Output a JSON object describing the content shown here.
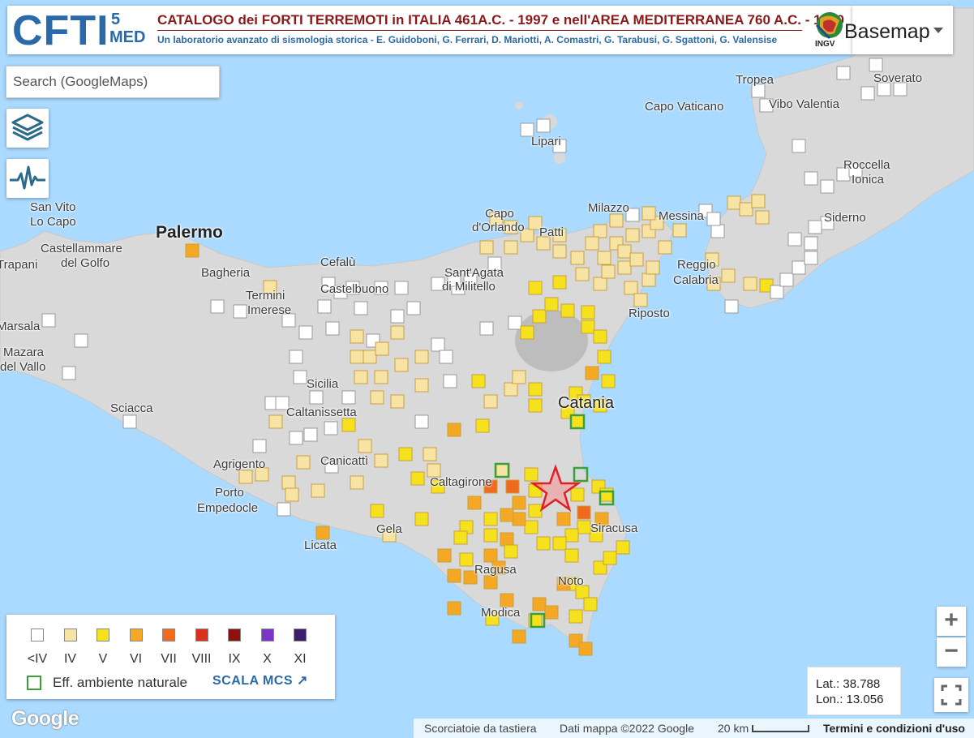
{
  "header": {
    "logo_main": "CFTI",
    "logo_num": "5",
    "logo_suffix": "MED",
    "title": "CATALOGO dei FORTI TERREMOTI in ITALIA 461A.C. - 1997 e nell'AREA MEDITERRANEA 760 A.C. - 1500",
    "subtitle": "Un laboratorio avanzato di sismologia storica - E. Guidoboni, G. Ferrari, D. Mariotti, A. Comastri, G. Tarabusi, G. Sgattoni, G. Valensise",
    "ingv_label": "INGV"
  },
  "basemap_button": {
    "label": "Basemap"
  },
  "search": {
    "placeholder": "Search (GoogleMaps)"
  },
  "side_buttons": [
    {
      "icon": "layers-icon"
    },
    {
      "icon": "seismogram-icon"
    }
  ],
  "map": {
    "colors": {
      "sea": "#aadaff",
      "land": "#d9d9d9",
      "land_light": "#e9e9e9",
      "env_border": "#3aa13a",
      "epicenter": "#e02020"
    },
    "places": [
      {
        "name": "Tropea",
        "x": 907,
        "y": 90
      },
      {
        "name": "Soverato",
        "x": 1077,
        "y": 88
      },
      {
        "name": "Vibo Valentia",
        "x": 948,
        "y": 120
      },
      {
        "name": "Capo Vaticano",
        "x": 795,
        "y": 123
      },
      {
        "name": "Lipari",
        "x": 655,
        "y": 166
      },
      {
        "name": "Roccella",
        "x": 1040,
        "y": 195
      },
      {
        "name": "Ionica",
        "x": 1050,
        "y": 213
      },
      {
        "name": "San Vito",
        "x": 37,
        "y": 247
      },
      {
        "name": "Lo Capo",
        "x": 37,
        "y": 265
      },
      {
        "name": "Capo",
        "x": 598,
        "y": 255
      },
      {
        "name": "d'Orlando",
        "x": 582,
        "y": 272
      },
      {
        "name": "Patti",
        "x": 665,
        "y": 278
      },
      {
        "name": "Milazzo",
        "x": 725,
        "y": 248
      },
      {
        "name": "Messina",
        "x": 812,
        "y": 258
      },
      {
        "name": "Siderno",
        "x": 1016,
        "y": 260
      },
      {
        "name": "Palermo",
        "x": 192,
        "y": 278,
        "style": "big"
      },
      {
        "name": "Castellammare",
        "x": 50,
        "y": 298
      },
      {
        "name": "del Golfo",
        "x": 75,
        "y": 316
      },
      {
        "name": "Trapani",
        "x": -4,
        "y": 318
      },
      {
        "name": "Bagheria",
        "x": 248,
        "y": 328
      },
      {
        "name": "Cefalù",
        "x": 395,
        "y": 315
      },
      {
        "name": "Reggio",
        "x": 835,
        "y": 318
      },
      {
        "name": "Calabria",
        "x": 830,
        "y": 337
      },
      {
        "name": "Termini",
        "x": 303,
        "y": 356
      },
      {
        "name": "Imerese",
        "x": 305,
        "y": 374
      },
      {
        "name": "Castelbuono",
        "x": 395,
        "y": 348
      },
      {
        "name": "Sant'Agata",
        "x": 548,
        "y": 328
      },
      {
        "name": "di Militello",
        "x": 545,
        "y": 345
      },
      {
        "name": "Marsala",
        "x": -4,
        "y": 394
      },
      {
        "name": "Mazara",
        "x": 4,
        "y": 426
      },
      {
        "name": "del Vallo",
        "x": 0,
        "y": 444
      },
      {
        "name": "Sciacca",
        "x": 136,
        "y": 495
      },
      {
        "name": "Sicilia",
        "x": 378,
        "y": 465
      },
      {
        "name": "Caltanissetta",
        "x": 353,
        "y": 500
      },
      {
        "name": "Catania",
        "x": 688,
        "y": 489,
        "style": "med"
      },
      {
        "name": "Riposto",
        "x": 775,
        "y": 378
      },
      {
        "name": "Agrigento",
        "x": 263,
        "y": 564
      },
      {
        "name": "Canicattì",
        "x": 395,
        "y": 560
      },
      {
        "name": "Caltagirone",
        "x": 530,
        "y": 586
      },
      {
        "name": "Porto",
        "x": 265,
        "y": 599
      },
      {
        "name": "Empedocle",
        "x": 243,
        "y": 618
      },
      {
        "name": "Siracusa",
        "x": 728,
        "y": 643
      },
      {
        "name": "Gela",
        "x": 464,
        "y": 644
      },
      {
        "name": "Licata",
        "x": 375,
        "y": 664
      },
      {
        "name": "Ragusa",
        "x": 585,
        "y": 694
      },
      {
        "name": "Noto",
        "x": 688,
        "y": 708
      },
      {
        "name": "Modica",
        "x": 593,
        "y": 747
      }
    ]
  },
  "legend": {
    "classes": [
      {
        "label": "<IV",
        "color": "#ffffff"
      },
      {
        "label": "IV",
        "color": "#f7e3a4"
      },
      {
        "label": "V",
        "color": "#f5e21c"
      },
      {
        "label": "VI",
        "color": "#f5a823"
      },
      {
        "label": "VII",
        "color": "#f06a1f"
      },
      {
        "label": "VIII",
        "color": "#d9311b"
      },
      {
        "label": "IX",
        "color": "#8c1212"
      },
      {
        "label": "X",
        "color": "#7a34c8"
      },
      {
        "label": "XI",
        "color": "#3b1e6e"
      }
    ],
    "env_effect_label": "Eff. ambiente naturale",
    "scale_link": "SCALA MCS"
  },
  "coords": {
    "lat": "Lat.:  38.788",
    "lon": "Lon.:  13.056"
  },
  "attribution": {
    "shortcuts": "Scorciatoie da tastiera",
    "map_data": "Dati mappa ©2022 Google",
    "scale": "20 km",
    "terms": "Termini e condizioni d'uso"
  },
  "google_logo": "Google"
}
